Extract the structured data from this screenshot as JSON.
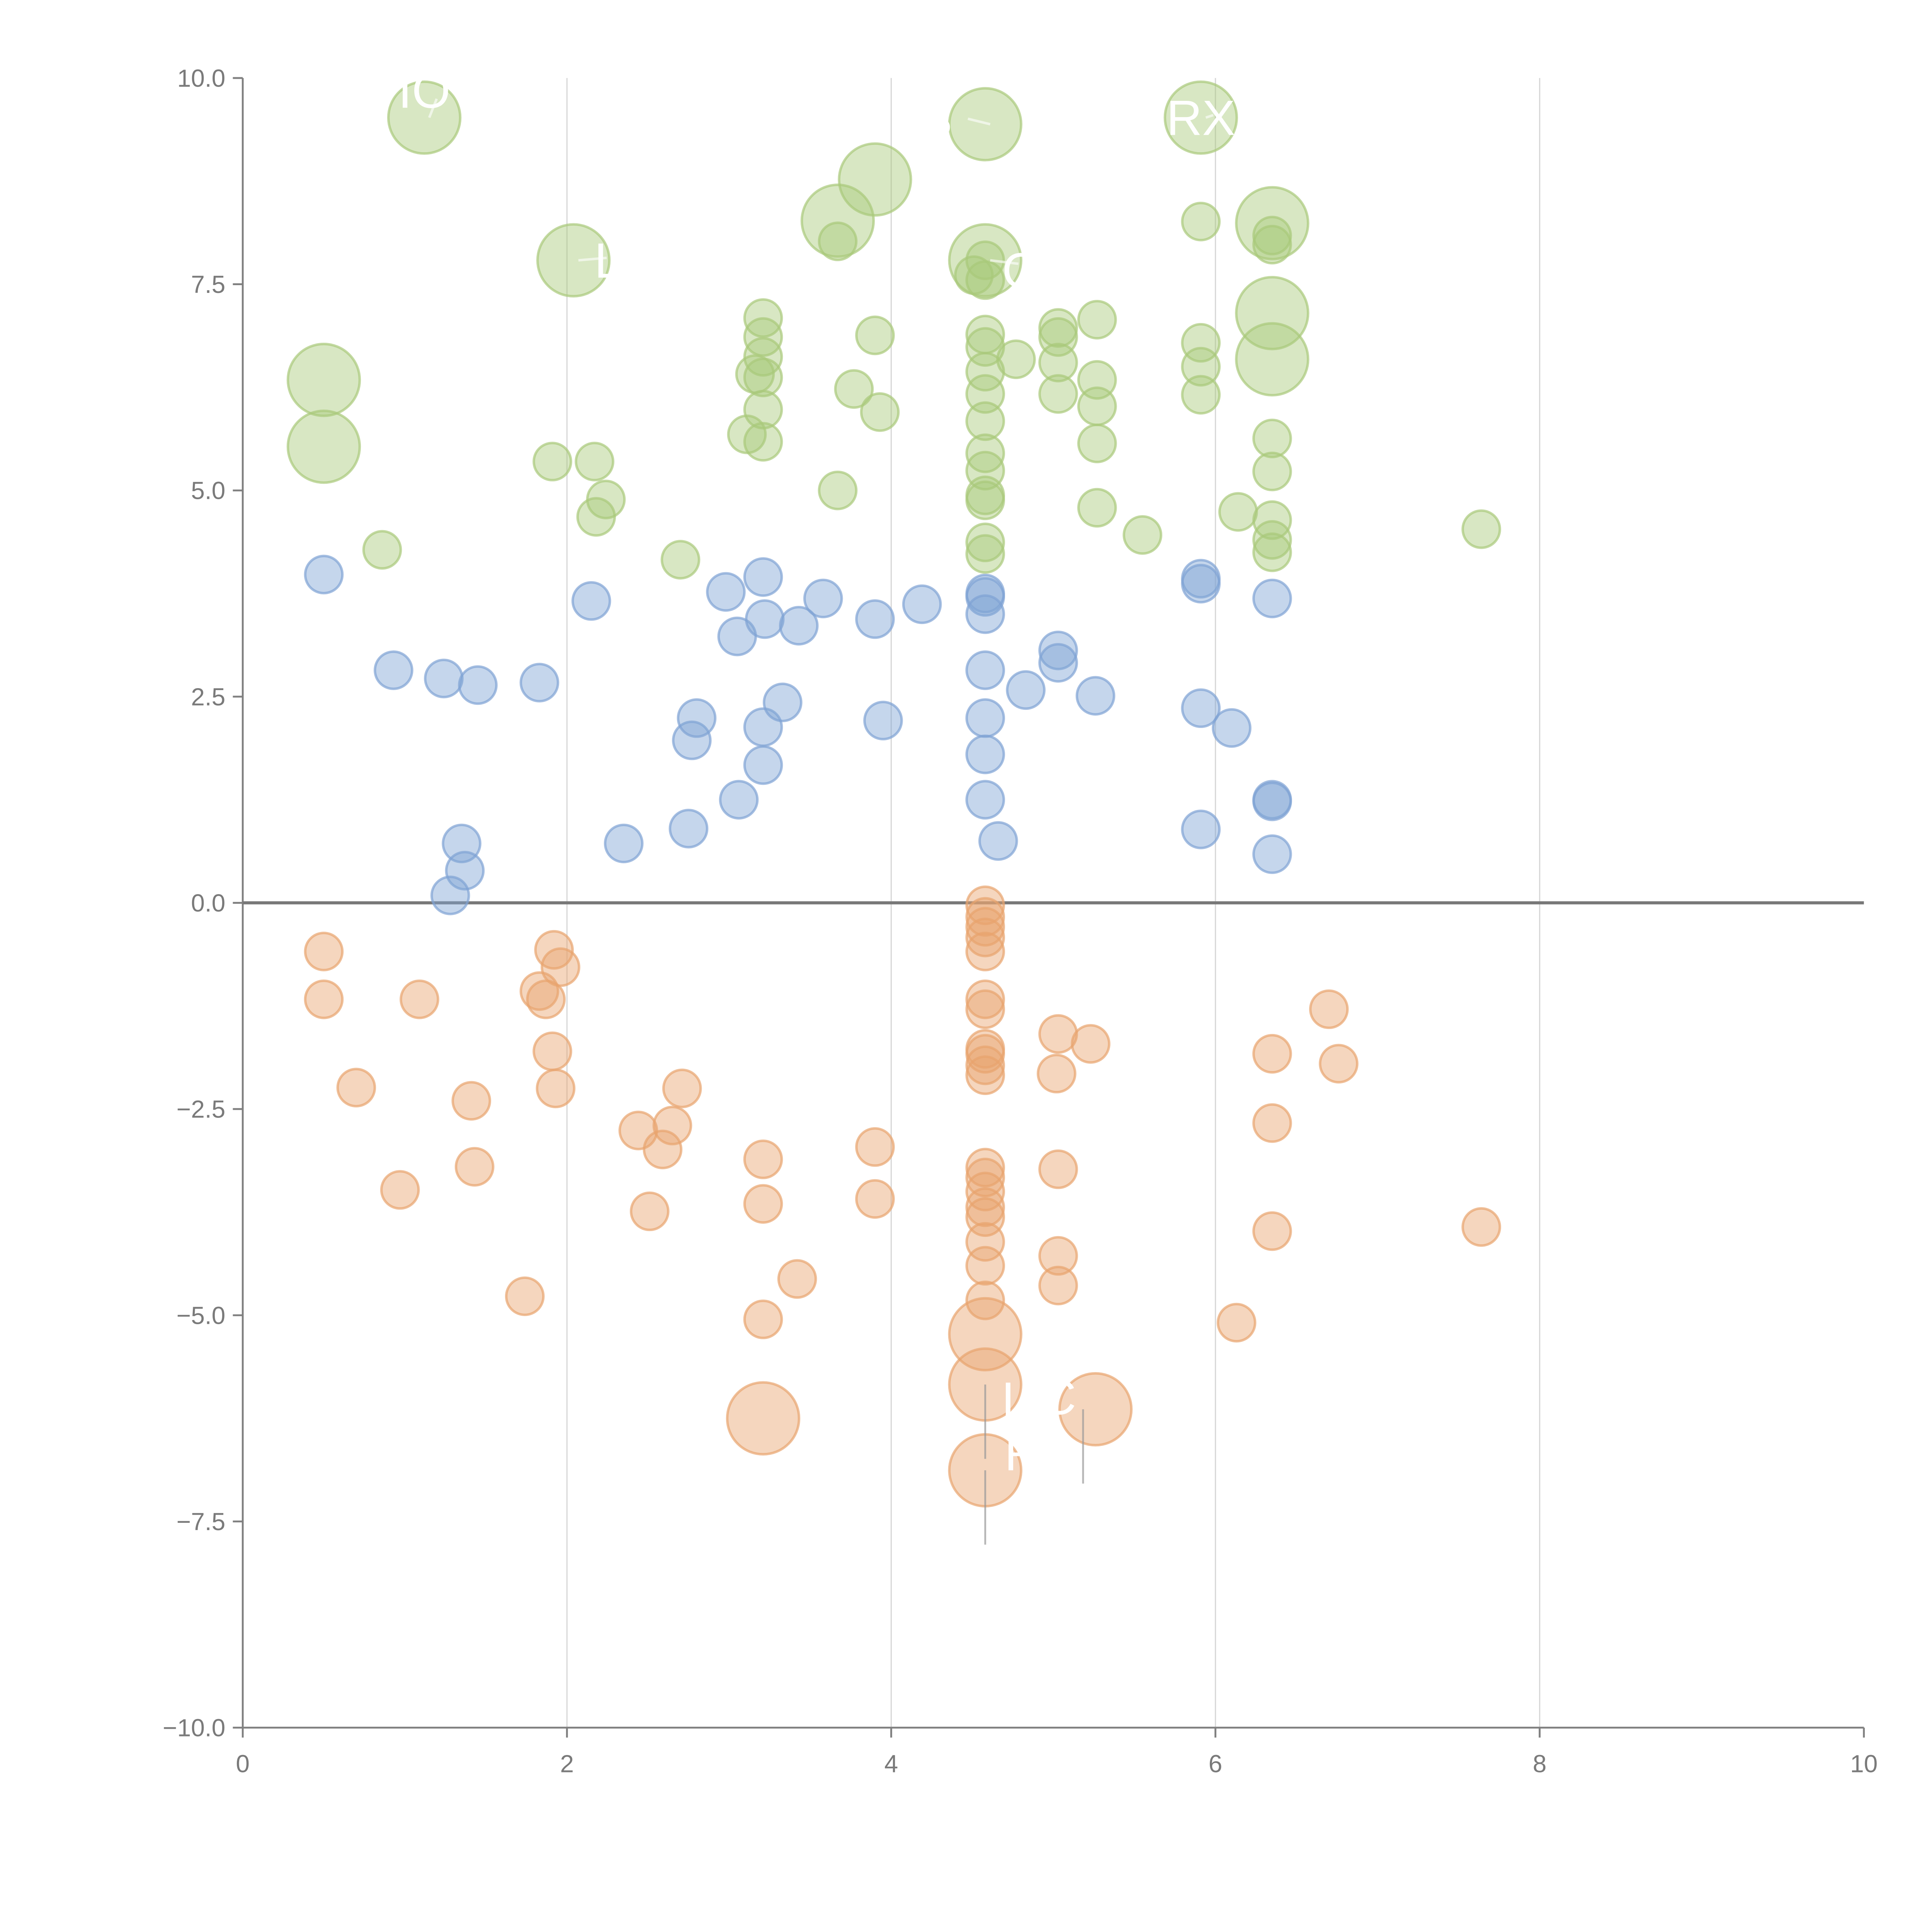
{
  "chart_data": {
    "type": "scatter",
    "title": "",
    "xlabel": "",
    "ylabel": "",
    "xlim": [
      0,
      10
    ],
    "ylim": [
      -10,
      10
    ],
    "xticks": [
      0,
      2,
      4,
      6,
      8,
      10
    ],
    "xtick_labels": [
      "0",
      "2",
      "4",
      "6",
      "8",
      "10"
    ],
    "yticks": [
      10,
      7.5,
      5,
      2.5,
      0,
      -2.5,
      -5,
      -7.5,
      -10
    ],
    "ytick_labels": [
      "10.0",
      "7.5",
      "5.0",
      "2.5",
      "0.0",
      "−2.5",
      "−5.0",
      "−7.5",
      "−10.0"
    ],
    "grid": "vertical",
    "reference_line_y": 0,
    "series": [
      {
        "color": "#a9c97a",
        "points": [
          [
            3.67,
            8.02
          ],
          [
            4.51,
            7.61
          ],
          [
            4.58,
            7.55
          ],
          [
            3.21,
            7.09
          ],
          [
            3.21,
            6.86
          ],
          [
            3.21,
            6.62
          ],
          [
            3.16,
            6.41
          ],
          [
            3.21,
            6.37
          ],
          [
            3.21,
            5.98
          ],
          [
            3.11,
            5.68
          ],
          [
            3.21,
            5.59
          ],
          [
            3.77,
            6.23
          ],
          [
            3.9,
            6.88
          ],
          [
            3.93,
            5.95
          ],
          [
            3.67,
            5.0
          ],
          [
            1.91,
            5.35
          ],
          [
            2.17,
            5.35
          ],
          [
            2.24,
            4.89
          ],
          [
            2.18,
            4.68
          ],
          [
            0.86,
            4.28
          ],
          [
            2.7,
            4.16
          ],
          [
            4.58,
            6.89
          ],
          [
            4.58,
            6.74
          ],
          [
            4.58,
            6.44
          ],
          [
            4.58,
            6.17
          ],
          [
            4.58,
            5.84
          ],
          [
            4.58,
            5.45
          ],
          [
            4.58,
            5.24
          ],
          [
            4.58,
            4.94
          ],
          [
            4.58,
            4.88
          ],
          [
            4.58,
            4.37
          ],
          [
            4.58,
            4.23
          ],
          [
            4.77,
            6.59
          ],
          [
            5.03,
            6.97
          ],
          [
            5.03,
            6.86
          ],
          [
            5.03,
            6.55
          ],
          [
            5.03,
            6.17
          ],
          [
            5.27,
            7.07
          ],
          [
            5.27,
            6.34
          ],
          [
            5.27,
            6.02
          ],
          [
            5.27,
            5.57
          ],
          [
            5.27,
            4.79
          ],
          [
            5.55,
            4.46
          ],
          [
            5.91,
            8.26
          ],
          [
            5.91,
            6.79
          ],
          [
            5.91,
            6.5
          ],
          [
            5.91,
            6.16
          ],
          [
            6.14,
            4.74
          ],
          [
            6.35,
            8.09
          ],
          [
            6.35,
            7.98
          ],
          [
            6.35,
            5.63
          ],
          [
            6.35,
            5.23
          ],
          [
            6.35,
            4.64
          ],
          [
            6.35,
            4.4
          ],
          [
            6.35,
            4.25
          ],
          [
            7.64,
            4.53
          ],
          [
            4.58,
            7.79
          ]
        ],
        "large": [
          {
            "x": 1.12,
            "y": 9.52,
            "label": "IO"
          },
          {
            "x": 4.58,
            "y": 9.44,
            "label": "S"
          },
          {
            "x": 5.91,
            "y": 9.52,
            "label": "RX"
          },
          {
            "x": 3.9,
            "y": 8.77,
            "label": ""
          },
          {
            "x": 3.67,
            "y": 8.27,
            "label": ""
          },
          {
            "x": 2.04,
            "y": 7.79,
            "label": "L"
          },
          {
            "x": 4.58,
            "y": 7.79,
            "label": "C"
          },
          {
            "x": 6.35,
            "y": 8.24,
            "label": ""
          },
          {
            "x": 6.35,
            "y": 7.15,
            "label": ""
          },
          {
            "x": 6.35,
            "y": 6.59,
            "label": ""
          },
          {
            "x": 0.5,
            "y": 6.34,
            "label": ""
          },
          {
            "x": 0.5,
            "y": 5.53,
            "label": ""
          }
        ]
      },
      {
        "color": "#7fa3d4",
        "points": [
          [
            0.5,
            3.98
          ],
          [
            0.93,
            2.82
          ],
          [
            1.24,
            2.72
          ],
          [
            1.45,
            2.64
          ],
          [
            1.83,
            2.67
          ],
          [
            2.15,
            3.66
          ],
          [
            1.35,
            0.72
          ],
          [
            1.37,
            0.39
          ],
          [
            1.28,
            0.09
          ],
          [
            2.35,
            0.72
          ],
          [
            2.75,
            0.9
          ],
          [
            2.77,
            1.97
          ],
          [
            2.8,
            2.24
          ],
          [
            2.98,
            3.77
          ],
          [
            3.05,
            3.23
          ],
          [
            3.06,
            1.25
          ],
          [
            3.21,
            3.95
          ],
          [
            3.22,
            3.44
          ],
          [
            3.21,
            2.13
          ],
          [
            3.21,
            1.67
          ],
          [
            3.33,
            2.43
          ],
          [
            3.43,
            3.36
          ],
          [
            3.58,
            3.69
          ],
          [
            3.9,
            3.44
          ],
          [
            3.95,
            2.21
          ],
          [
            4.19,
            3.62
          ],
          [
            4.58,
            3.75
          ],
          [
            4.58,
            3.71
          ],
          [
            4.58,
            3.5
          ],
          [
            4.58,
            2.82
          ],
          [
            4.58,
            2.24
          ],
          [
            4.58,
            1.8
          ],
          [
            4.58,
            1.25
          ],
          [
            4.66,
            0.75
          ],
          [
            4.83,
            2.58
          ],
          [
            5.03,
            3.06
          ],
          [
            5.03,
            2.91
          ],
          [
            5.26,
            2.51
          ],
          [
            5.91,
            3.93
          ],
          [
            5.91,
            3.87
          ],
          [
            5.91,
            2.36
          ],
          [
            5.91,
            0.89
          ],
          [
            6.1,
            2.12
          ],
          [
            6.35,
            3.69
          ],
          [
            6.35,
            1.25
          ],
          [
            6.35,
            1.23
          ],
          [
            6.35,
            0.59
          ]
        ],
        "large": []
      },
      {
        "color": "#e8a46e",
        "points": [
          [
            0.5,
            -0.59
          ],
          [
            0.5,
            -1.17
          ],
          [
            1.09,
            -1.17
          ],
          [
            0.7,
            -2.24
          ],
          [
            0.97,
            -3.48
          ],
          [
            1.41,
            -2.4
          ],
          [
            1.43,
            -3.2
          ],
          [
            1.74,
            -4.77
          ],
          [
            1.83,
            -1.07
          ],
          [
            1.87,
            -1.17
          ],
          [
            1.92,
            -0.57
          ],
          [
            1.96,
            -0.78
          ],
          [
            1.91,
            -1.8
          ],
          [
            1.93,
            -2.25
          ],
          [
            2.44,
            -2.76
          ],
          [
            2.59,
            -2.99
          ],
          [
            2.65,
            -2.7
          ],
          [
            2.71,
            -2.25
          ],
          [
            2.51,
            -3.74
          ],
          [
            3.21,
            -3.11
          ],
          [
            3.21,
            -3.65
          ],
          [
            3.21,
            -5.05
          ],
          [
            3.42,
            -4.56
          ],
          [
            3.9,
            -2.96
          ],
          [
            3.9,
            -3.59
          ],
          [
            4.58,
            -0.03
          ],
          [
            4.58,
            -0.17
          ],
          [
            4.58,
            -0.29
          ],
          [
            4.58,
            -0.42
          ],
          [
            4.58,
            -0.59
          ],
          [
            4.58,
            -1.17
          ],
          [
            4.58,
            -1.29
          ],
          [
            4.58,
            -1.77
          ],
          [
            4.58,
            -1.83
          ],
          [
            4.58,
            -1.97
          ],
          [
            4.58,
            -2.09
          ],
          [
            4.58,
            -3.21
          ],
          [
            4.58,
            -3.33
          ],
          [
            4.58,
            -3.5
          ],
          [
            4.58,
            -3.69
          ],
          [
            4.58,
            -3.81
          ],
          [
            4.58,
            -4.11
          ],
          [
            4.58,
            -4.4
          ],
          [
            4.58,
            -4.82
          ],
          [
            5.03,
            -1.59
          ],
          [
            5.02,
            -2.07
          ],
          [
            5.03,
            -3.23
          ],
          [
            5.03,
            -4.28
          ],
          [
            5.03,
            -4.64
          ],
          [
            5.23,
            -1.71
          ],
          [
            6.13,
            -5.09
          ],
          [
            6.35,
            -1.83
          ],
          [
            6.35,
            -2.67
          ],
          [
            6.35,
            -3.98
          ],
          [
            6.7,
            -1.29
          ],
          [
            6.76,
            -1.95
          ],
          [
            7.64,
            -3.93
          ]
        ],
        "large": [
          {
            "x": 4.58,
            "y": -5.23,
            "label": ""
          },
          {
            "x": 4.58,
            "y": -5.84,
            "label": "LI"
          },
          {
            "x": 4.58,
            "y": -6.88,
            "label": "R"
          },
          {
            "x": 5.26,
            "y": -6.14,
            "label": "C"
          },
          {
            "x": 3.21,
            "y": -6.25,
            "label": ""
          }
        ]
      }
    ]
  }
}
